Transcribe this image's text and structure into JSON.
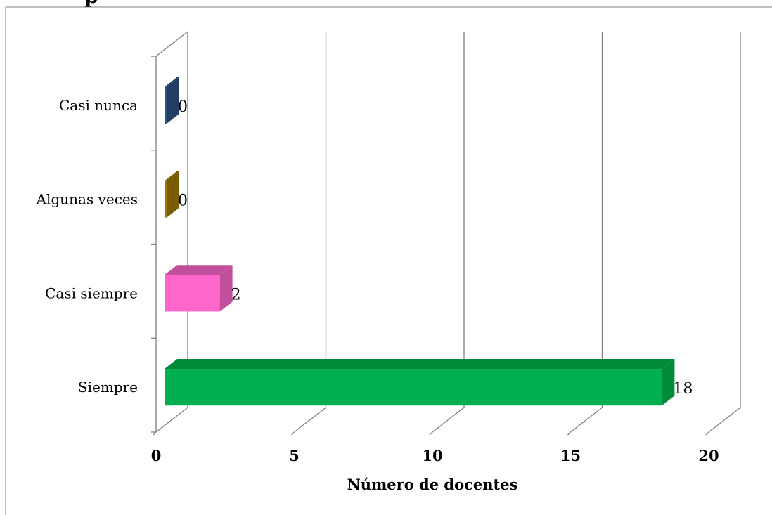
{
  "chart_data": {
    "type": "bar",
    "orientation": "horizontal",
    "three_d": true,
    "title": "",
    "xlabel": "Número de docentes",
    "ylabel": "",
    "categories": [
      "Siempre",
      "Casi siempre",
      "Algunas veces",
      "Casi nunca"
    ],
    "values": [
      18,
      2,
      0,
      0
    ],
    "data_labels": [
      "18",
      "2",
      "0",
      "0"
    ],
    "bar_colors": [
      "#00B050",
      "#FF66CC",
      "#A07800",
      "#2E5283"
    ],
    "bar_side_colors": [
      "#008A3A",
      "#C0509C",
      "#7A5C00",
      "#213D63"
    ],
    "xlim": [
      0,
      20
    ],
    "xticks": [
      "0",
      "5",
      "10",
      "15",
      "20"
    ],
    "grid": true,
    "legend": "none"
  },
  "page": {
    "top_title_fragment": "p"
  },
  "colors": {
    "axis": "#808080",
    "grid": "#808080",
    "frame": "#808080",
    "text": "#000000"
  }
}
